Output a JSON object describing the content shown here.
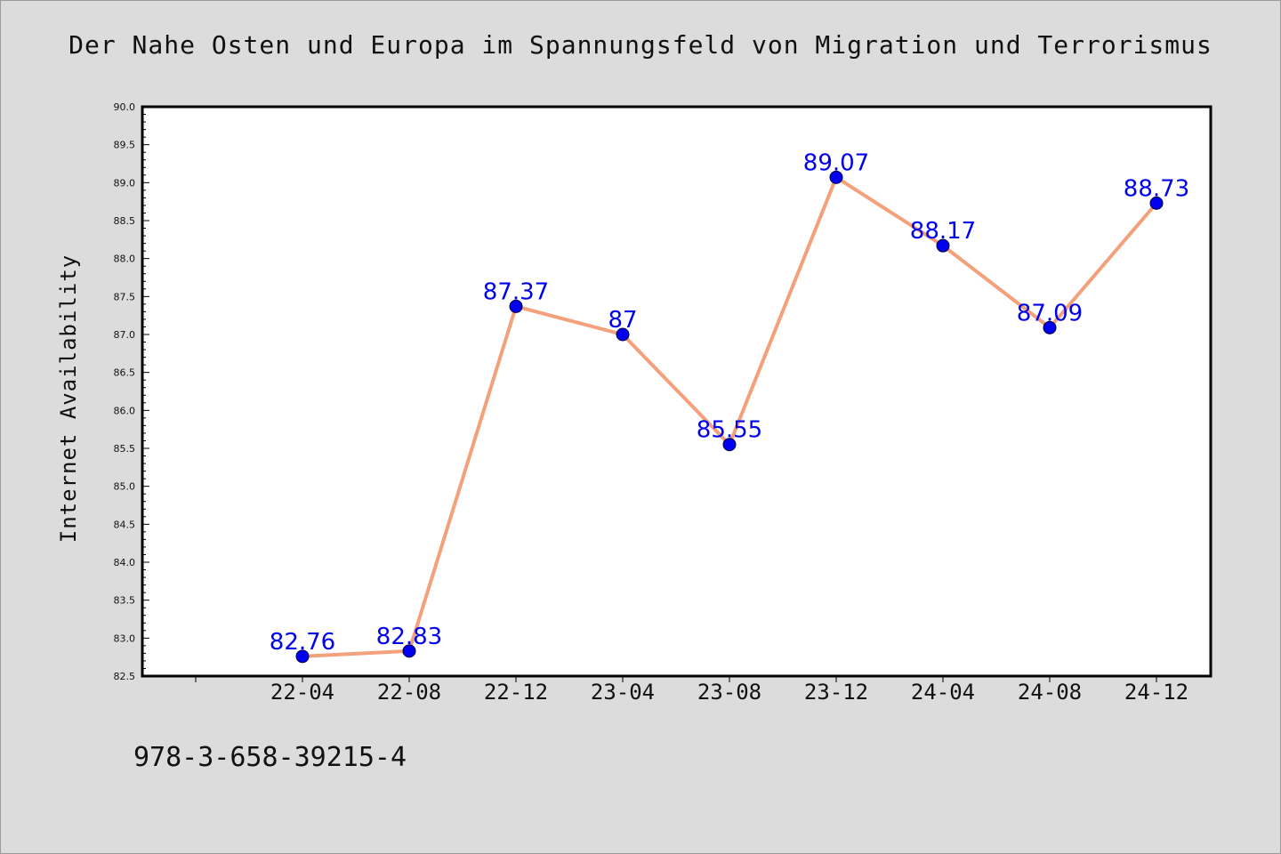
{
  "title": "Der Nahe Osten und Europa im Spannungsfeld von Migration und Terrorismus",
  "footer_text": "978-3-658-39215-4",
  "chart_data": {
    "type": "line",
    "title": "Der Nahe Osten und Europa im Spannungsfeld von Migration und Terrorismus",
    "xlabel": "",
    "ylabel": "Internet Availability",
    "categories": [
      "22-04",
      "22-08",
      "22-12",
      "23-04",
      "23-08",
      "23-12",
      "24-04",
      "24-08",
      "24-12"
    ],
    "series": [
      {
        "values": [
          82.76,
          82.83,
          87.37,
          87,
          85.55,
          89.07,
          88.17,
          87.09,
          88.73
        ],
        "labels": [
          "82.76",
          "82.83",
          "87.37",
          "87",
          "85.55",
          "89.07",
          "88.17",
          "87.09",
          "88.73"
        ]
      }
    ],
    "ylim": [
      82.5,
      90.0
    ],
    "yticks": [
      "82.5",
      "83.0",
      "83.5",
      "84.0",
      "84.5",
      "85.0",
      "85.5",
      "86.0",
      "86.5",
      "87.0",
      "87.5",
      "88.0",
      "88.5",
      "89.0",
      "89.5",
      "90.0"
    ],
    "grid": false,
    "legend": "none",
    "colors": {
      "line": "#f4a07a",
      "marker": "#0000ee",
      "data_label": "#0000ee",
      "background": "#dcdcdc",
      "plot_background": "#ffffff"
    }
  }
}
